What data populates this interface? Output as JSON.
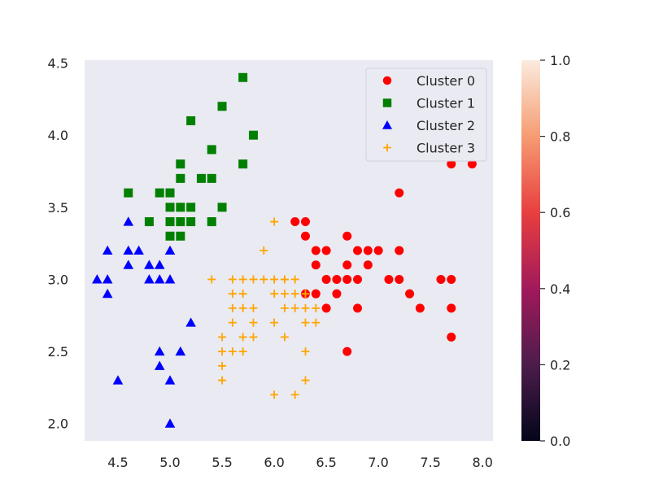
{
  "chart_data": {
    "type": "scatter",
    "title": "",
    "xlabel": "",
    "ylabel": "",
    "xlim": [
      4.18,
      8.1
    ],
    "ylim": [
      1.88,
      4.52
    ],
    "xticks": [
      4.5,
      5.0,
      5.5,
      6.0,
      6.5,
      7.0,
      7.5,
      8.0
    ],
    "xtick_labels": [
      "4.5",
      "5.0",
      "5.5",
      "6.0",
      "6.5",
      "7.0",
      "7.5",
      "8.0"
    ],
    "yticks": [
      2.0,
      2.5,
      3.0,
      3.5,
      4.0,
      4.5
    ],
    "ytick_labels": [
      "2.0",
      "2.5",
      "3.0",
      "3.5",
      "4.0",
      "4.5"
    ],
    "grid": false,
    "plot_bg_color": "#eaeaf2",
    "legend_position": "top-right",
    "series": [
      {
        "name": "Cluster 0",
        "marker": "circle",
        "color": "#ff0000",
        "points": [
          [
            6.2,
            3.4
          ],
          [
            6.3,
            3.4
          ],
          [
            6.3,
            3.3
          ],
          [
            6.4,
            3.2
          ],
          [
            6.5,
            3.2
          ],
          [
            6.4,
            3.1
          ],
          [
            6.5,
            3.0
          ],
          [
            6.6,
            3.0
          ],
          [
            6.4,
            2.9
          ],
          [
            6.6,
            2.9
          ],
          [
            6.5,
            2.8
          ],
          [
            6.7,
            3.3
          ],
          [
            6.7,
            3.1
          ],
          [
            6.7,
            3.0
          ],
          [
            6.8,
            3.2
          ],
          [
            6.8,
            3.0
          ],
          [
            6.8,
            2.8
          ],
          [
            6.9,
            3.2
          ],
          [
            6.9,
            3.1
          ],
          [
            7.0,
            3.2
          ],
          [
            7.1,
            3.0
          ],
          [
            7.2,
            3.6
          ],
          [
            7.2,
            3.2
          ],
          [
            7.2,
            3.0
          ],
          [
            7.3,
            2.9
          ],
          [
            7.4,
            2.8
          ],
          [
            7.6,
            3.0
          ],
          [
            7.7,
            3.8
          ],
          [
            7.7,
            3.0
          ],
          [
            7.7,
            2.8
          ],
          [
            7.7,
            2.6
          ],
          [
            7.9,
            3.8
          ],
          [
            6.7,
            2.5
          ],
          [
            6.3,
            2.9
          ]
        ]
      },
      {
        "name": "Cluster 1",
        "marker": "square",
        "color": "#008000",
        "points": [
          [
            4.6,
            3.6
          ],
          [
            4.8,
            3.4
          ],
          [
            4.9,
            3.6
          ],
          [
            5.0,
            3.6
          ],
          [
            5.0,
            3.5
          ],
          [
            5.0,
            3.4
          ],
          [
            5.0,
            3.3
          ],
          [
            5.1,
            3.8
          ],
          [
            5.1,
            3.7
          ],
          [
            5.1,
            3.5
          ],
          [
            5.1,
            3.4
          ],
          [
            5.1,
            3.3
          ],
          [
            5.2,
            4.1
          ],
          [
            5.2,
            3.5
          ],
          [
            5.2,
            3.4
          ],
          [
            5.3,
            3.7
          ],
          [
            5.4,
            3.9
          ],
          [
            5.4,
            3.7
          ],
          [
            5.4,
            3.4
          ],
          [
            5.5,
            4.2
          ],
          [
            5.5,
            3.5
          ],
          [
            5.7,
            4.4
          ],
          [
            5.7,
            3.8
          ],
          [
            5.8,
            4.0
          ]
        ]
      },
      {
        "name": "Cluster 2",
        "marker": "triangle",
        "color": "#0000ff",
        "points": [
          [
            4.3,
            3.0
          ],
          [
            4.4,
            3.2
          ],
          [
            4.4,
            3.0
          ],
          [
            4.4,
            2.9
          ],
          [
            4.5,
            2.3
          ],
          [
            4.6,
            3.4
          ],
          [
            4.6,
            3.2
          ],
          [
            4.6,
            3.1
          ],
          [
            4.7,
            3.2
          ],
          [
            4.8,
            3.1
          ],
          [
            4.8,
            3.0
          ],
          [
            4.9,
            3.1
          ],
          [
            4.9,
            3.0
          ],
          [
            4.9,
            2.5
          ],
          [
            4.9,
            2.4
          ],
          [
            5.0,
            3.2
          ],
          [
            5.0,
            3.0
          ],
          [
            5.0,
            2.3
          ],
          [
            5.0,
            2.0
          ],
          [
            5.1,
            2.5
          ],
          [
            5.2,
            2.7
          ]
        ]
      },
      {
        "name": "Cluster 3",
        "marker": "plus",
        "color": "#ffa500",
        "points": [
          [
            5.4,
            3.0
          ],
          [
            5.6,
            3.0
          ],
          [
            5.7,
            3.0
          ],
          [
            5.6,
            2.9
          ],
          [
            5.7,
            2.9
          ],
          [
            5.6,
            2.8
          ],
          [
            5.7,
            2.8
          ],
          [
            5.8,
            2.8
          ],
          [
            5.6,
            2.7
          ],
          [
            5.8,
            2.7
          ],
          [
            5.5,
            2.6
          ],
          [
            5.7,
            2.6
          ],
          [
            5.8,
            2.6
          ],
          [
            5.5,
            2.5
          ],
          [
            5.6,
            2.5
          ],
          [
            5.7,
            2.5
          ],
          [
            5.5,
            2.4
          ],
          [
            5.5,
            2.3
          ],
          [
            5.8,
            3.0
          ],
          [
            5.9,
            3.0
          ],
          [
            5.9,
            3.2
          ],
          [
            6.0,
            3.4
          ],
          [
            6.0,
            3.0
          ],
          [
            6.0,
            2.9
          ],
          [
            6.0,
            2.7
          ],
          [
            6.0,
            2.2
          ],
          [
            6.1,
            3.0
          ],
          [
            6.1,
            2.9
          ],
          [
            6.1,
            2.8
          ],
          [
            6.1,
            2.6
          ],
          [
            6.2,
            2.9
          ],
          [
            6.2,
            2.8
          ],
          [
            6.2,
            2.2
          ],
          [
            6.3,
            2.9
          ],
          [
            6.3,
            2.8
          ],
          [
            6.3,
            2.7
          ],
          [
            6.3,
            2.5
          ],
          [
            6.3,
            2.3
          ],
          [
            6.4,
            2.8
          ],
          [
            6.4,
            2.7
          ],
          [
            6.1,
            3.0
          ],
          [
            6.2,
            3.0
          ]
        ]
      }
    ],
    "colorbar": {
      "min": 0.0,
      "max": 1.0,
      "ticks": [
        0.0,
        0.2,
        0.4,
        0.6,
        0.8,
        1.0
      ],
      "tick_labels": [
        "0.0",
        "0.2",
        "0.4",
        "0.6",
        "0.8",
        "1.0"
      ],
      "colormap": "rocket",
      "color_stops": [
        "#03051a",
        "#4c1d4b",
        "#a11a5b",
        "#e83f3f",
        "#f69c73",
        "#faebdd"
      ]
    }
  }
}
